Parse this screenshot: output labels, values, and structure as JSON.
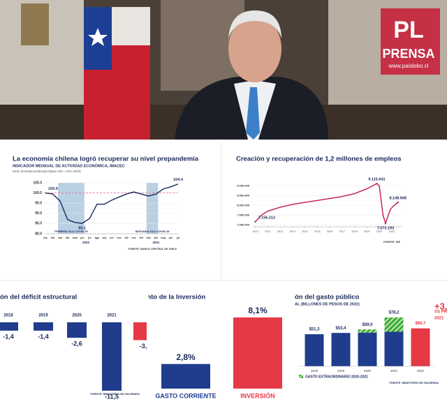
{
  "logo": {
    "mark": "PL",
    "name": "PRENSA",
    "url": "www.paislobo.cl"
  },
  "chart_data": [
    {
      "type": "line",
      "title": "La economía chilena logró recuperar su nivel prepandemia",
      "subtitle": "INDICADOR MENSUAL DE ACTIVIDAD ECONÓMICA, IMACEC",
      "note": "Serie desestacionalizada (Base 100 = Ene 2020)",
      "source": "FUENTE: BANCO CENTRAL DE CHILE",
      "categories": [
        "ene",
        "feb",
        "mar",
        "abr",
        "may",
        "jun",
        "jul",
        "ago",
        "sep",
        "oct",
        "nov",
        "dic",
        "ene",
        "feb",
        "mar",
        "abr",
        "may",
        "jun",
        "jul"
      ],
      "groups": [
        {
          "label": "2020",
          "start": 0,
          "end": 11
        },
        {
          "label": "2021",
          "start": 12,
          "end": 18
        }
      ],
      "bands": [
        {
          "label": "PRIMERA OLA COVID-19",
          "start": 2,
          "end": 5
        },
        {
          "label": "SEGUNDA OLA COVID-19",
          "start": 14,
          "end": 15
        }
      ],
      "series": [
        {
          "name": "IMACEC",
          "color": "#1a2a5a",
          "values": [
            100,
            99.5,
            96,
            87,
            85.5,
            85.1,
            87.5,
            94.5,
            94.5,
            96.5,
            98,
            99.5,
            100.5,
            99.5,
            98.5,
            99.5,
            102,
            103,
            104.4
          ],
          "value_labels": [
            "100.0",
            null,
            null,
            null,
            null,
            "85.1",
            null,
            null,
            null,
            null,
            null,
            null,
            null,
            null,
            null,
            null,
            null,
            null,
            "104.4"
          ]
        }
      ],
      "reference_line": 100,
      "ylim": [
        80,
        105
      ],
      "yticks": [
        {
          "value": 80,
          "label": "80.0"
        },
        {
          "value": 85,
          "label": "85.0"
        },
        {
          "value": 90,
          "label": "90.0"
        },
        {
          "value": 95,
          "label": "95.0"
        },
        {
          "value": 100,
          "label": "100.0"
        },
        {
          "value": 105,
          "label": "105.0"
        }
      ]
    },
    {
      "type": "line",
      "title": "Creación y recuperación de 1,2 millones de empleos",
      "source": "FUENTE: INE",
      "x": [
        2010,
        2010.5,
        2011,
        2012,
        2013,
        2014,
        2015,
        2016,
        2017,
        2018,
        2019,
        2019.8,
        2020,
        2020.3,
        2020.5,
        2020.9,
        2021.2,
        2021.5
      ],
      "series": [
        {
          "name": "Ocupados",
          "color": "#c2185b",
          "values": [
            7156212,
            7500000,
            7700000,
            7900000,
            8050000,
            8150000,
            8250000,
            8350000,
            8450000,
            8600000,
            8850000,
            9115641,
            9000000,
            7500000,
            7073193,
            7800000,
            8000000,
            8148948
          ],
          "value_labels": [
            "7.156.212",
            null,
            null,
            null,
            null,
            null,
            null,
            null,
            null,
            null,
            null,
            "9.115.641",
            null,
            null,
            "7.073.193",
            null,
            null,
            "8.148.948"
          ]
        }
      ],
      "xlim": [
        2009.8,
        2021.8
      ],
      "xticks": [
        2010,
        2011,
        2012,
        2013,
        2014,
        2015,
        2016,
        2017,
        2018,
        2019,
        2020,
        2021
      ],
      "ylim": [
        6900000,
        9300000
      ],
      "yticks": [
        {
          "value": 7000000,
          "label": "7.000.000"
        },
        {
          "value": 7500000,
          "label": "7.500.000"
        },
        {
          "value": 8000000,
          "label": "8.000.000"
        },
        {
          "value": 8500000,
          "label": "8.500.000"
        },
        {
          "value": 9000000,
          "label": "9.000.000"
        }
      ]
    },
    {
      "type": "bar",
      "title": "ón del déficit estructural",
      "source": "FUENTE: MINISTERIO DE HACIENDA",
      "categories": [
        "2018",
        "2019",
        "2020",
        "2021",
        null
      ],
      "series": [
        {
          "name": "Déficit",
          "colors": [
            "#1f3d8c",
            "#1f3d8c",
            "#1f3d8c",
            "#1f3d8c",
            "#e63946"
          ],
          "values": [
            -1.4,
            -1.4,
            -2.6,
            -11.5,
            -3
          ],
          "value_labels": [
            "-1,4",
            "-1,4",
            "-2,6",
            "-11,5",
            "-3,"
          ]
        }
      ]
    },
    {
      "type": "bar",
      "title": "ento de la Inversión",
      "categories": [
        "GASTO CORRIENTE",
        "INVERSIÓN"
      ],
      "series": [
        {
          "name": "Crecimiento",
          "colors": [
            "#1f3d8c",
            "#e63946"
          ],
          "values": [
            2.8,
            8.1
          ],
          "value_labels": [
            "2,8%",
            "8,1%"
          ]
        }
      ]
    },
    {
      "type": "bar",
      "title": "ón del gasto público",
      "subtitle": "AL (BILLONES DE PESOS DE 2022)",
      "source": "FUENTE: MINISTERIO DE HACIENDA",
      "side_note": [
        "+3,7",
        "VS PRESU",
        "2021"
      ],
      "categories": [
        "2018",
        "2019",
        "2020",
        "2021",
        "2022"
      ],
      "series": [
        {
          "name": "Gasto",
          "colors": [
            "#1f3d8c",
            "#1f3d8c",
            "#1f3d8c",
            "#1f3d8c",
            "#e63946"
          ],
          "values": [
            51.3,
            53.4,
            53.9,
            55.3,
            60.7
          ]
        },
        {
          "name": "GASTO EXTRAORDINARIO 2020-2021",
          "color": "#3aaa35",
          "values": [
            null,
            null,
            5.1,
            22.9,
            null
          ]
        }
      ],
      "totals": [
        51.3,
        53.4,
        59.0,
        78.2,
        60.7
      ],
      "total_labels": [
        "$51,3",
        "$53,4",
        "$59,0",
        "$78,2",
        "$60,7"
      ]
    }
  ]
}
